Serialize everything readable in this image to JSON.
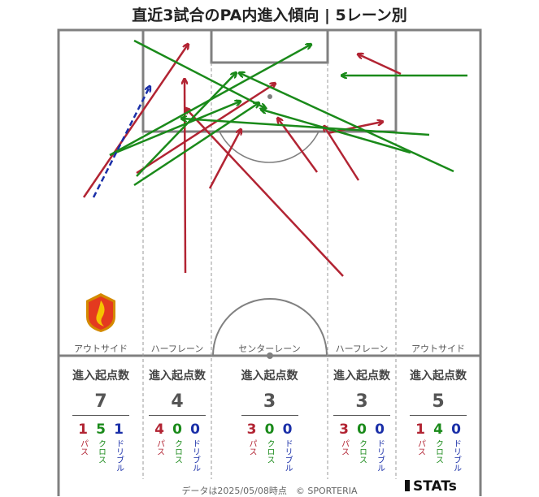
{
  "title": "直近3試合のPA内進入傾向 | 5レーン別",
  "lanes": [
    {
      "label": "アウトサイド",
      "header": "進入起点数",
      "total": "7",
      "pass": "1",
      "cross": "5",
      "dribble": "1"
    },
    {
      "label": "ハーフレーン",
      "header": "進入起点数",
      "total": "4",
      "pass": "4",
      "cross": "0",
      "dribble": "0"
    },
    {
      "label": "センターレーン",
      "header": "進入起点数",
      "total": "3",
      "pass": "3",
      "cross": "0",
      "dribble": "0"
    },
    {
      "label": "ハーフレーン",
      "header": "進入起点数",
      "total": "3",
      "pass": "3",
      "cross": "0",
      "dribble": "0"
    },
    {
      "label": "アウトサイド",
      "header": "進入起点数",
      "total": "5",
      "pass": "1",
      "cross": "4",
      "dribble": "0"
    }
  ],
  "legend": {
    "pass": "パス",
    "cross": "クロス",
    "dribble": "ドリブル"
  },
  "footer": "データは2025/05/08時点　© SPORTERIA",
  "brand": "STATs",
  "colors": {
    "pass": "#b22433",
    "cross": "#1a8a1a",
    "dribble": "#1a2fa8",
    "line": "#808080"
  }
}
